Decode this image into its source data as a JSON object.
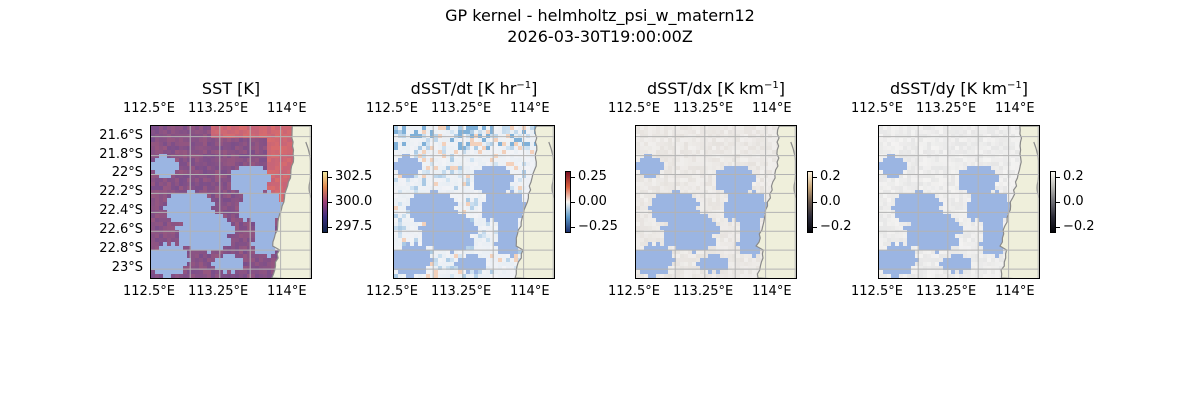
{
  "suptitle": {
    "line1": "GP kernel - helmholtz_psi_w_matern12",
    "line2": "2026-03-30T19:00:00Z"
  },
  "lon_ticks": [
    "112.5°E",
    "113.25°E",
    "114°E"
  ],
  "lat_ticks": [
    "21.6°S",
    "21.8°S",
    "22°S",
    "22.2°S",
    "22.4°S",
    "22.6°S",
    "22.8°S",
    "23°S"
  ],
  "panels": [
    {
      "title_main": "SST [K]",
      "title_sup": "",
      "field": "sst",
      "colorbar": {
        "ticks": [
          "302.5",
          "300.0",
          "297.5"
        ],
        "colors": [
          "#f2e9a0",
          "#e0884f",
          "#9b3f76",
          "#3c2f7e",
          "#102448"
        ]
      }
    },
    {
      "title_main": "dSST/dt [K hr",
      "title_sup": "−1",
      "title_end": "]",
      "field": "dt",
      "colorbar": {
        "ticks": [
          "0.25",
          "0.00",
          "−0.25"
        ],
        "colors": [
          "#7a1022",
          "#d9603f",
          "#f7f4ef",
          "#5f9ac9",
          "#1a2f6e"
        ]
      }
    },
    {
      "title_main": "dSST/dx [K km",
      "title_sup": "−1",
      "title_end": "]",
      "field": "dx",
      "colorbar": {
        "ticks": [
          "0.2",
          "0.0",
          "−0.2"
        ],
        "colors": [
          "#fff5e0",
          "#c8a77a",
          "#6b5a4e",
          "#2b2b3a",
          "#05050a"
        ]
      }
    },
    {
      "title_main": "dSST/dy [K km",
      "title_sup": "−1",
      "title_end": "]",
      "field": "dy",
      "colorbar": {
        "ticks": [
          "0.2",
          "0.0",
          "−0.2"
        ],
        "colors": [
          "#fbfaf4",
          "#b9b9b5",
          "#6e6e74",
          "#2a2a36",
          "#05050a"
        ]
      }
    }
  ],
  "colors": {
    "mask": "#9bb5e2",
    "land": "#efefdb",
    "coast": "#8a8a8a",
    "grid": "#b3b3b3"
  }
}
